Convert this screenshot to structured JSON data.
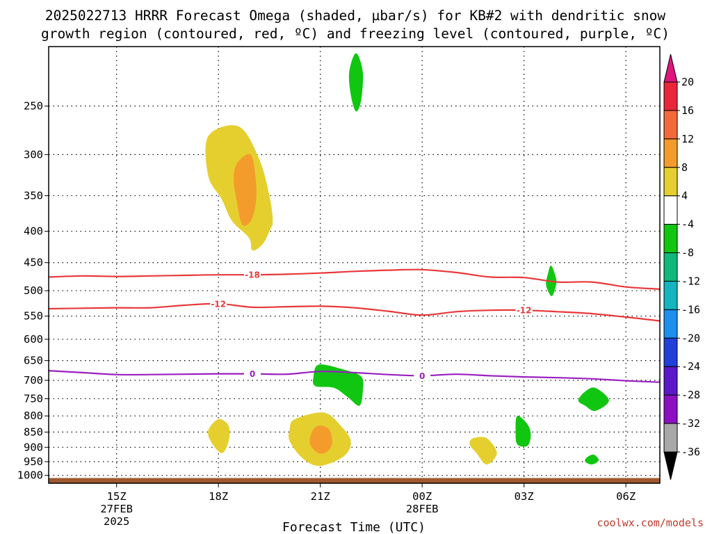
{
  "chart_data": {
    "type": "heatmap",
    "title_line1": "2025022713 HRRR Forecast Omega (shaded, µbar/s) for KB#2 with dendritic snow",
    "title_line2": "growth region (contoured, red, ºC) and freezing level (contoured, purple, ºC)",
    "xlabel": "Forecast Time (UTC)",
    "credit": "coolwx.com/models",
    "x_unit": "hours since 2025022713",
    "xlim": [
      0,
      18
    ],
    "y_log_pressure": true,
    "ylim": [
      200,
      1030
    ],
    "x_ticks": [
      {
        "x": 2,
        "l1": "15Z",
        "l2": "27FEB",
        "l3": "2025"
      },
      {
        "x": 5,
        "l1": "18Z",
        "l2": "",
        "l3": ""
      },
      {
        "x": 8,
        "l1": "21Z",
        "l2": "",
        "l3": ""
      },
      {
        "x": 11,
        "l1": "00Z",
        "l2": "28FEB",
        "l3": ""
      },
      {
        "x": 14,
        "l1": "03Z",
        "l2": "",
        "l3": ""
      },
      {
        "x": 17,
        "l1": "06Z",
        "l2": "",
        "l3": ""
      }
    ],
    "y_ticks": [
      250,
      300,
      350,
      400,
      450,
      500,
      550,
      600,
      650,
      700,
      750,
      800,
      850,
      900,
      950,
      1000
    ],
    "colorbar": {
      "labels": [
        "20",
        "16",
        "12",
        "8",
        "4",
        "-4",
        "-8",
        "-12",
        "-16",
        "-20",
        "-24",
        "-28",
        "-32",
        "-36"
      ],
      "top_arrow_color": "#e0167e",
      "bottom_arrow_color": "#000000",
      "colors": [
        "#e8283a",
        "#f26a3a",
        "#f39c2c",
        "#e5cf2e",
        "#ffffff",
        "#11c611",
        "#10b87a",
        "#14b4c0",
        "#1c8eeb",
        "#2040d8",
        "#5a18c8",
        "#8c10c0",
        "#a8a8a8"
      ]
    },
    "omega_regions": [
      {
        "value": 6,
        "points": [
          [
            4.7,
            280
          ],
          [
            5.6,
            270
          ],
          [
            6.2,
            305
          ],
          [
            6.5,
            350
          ],
          [
            6.6,
            385
          ],
          [
            6.5,
            400
          ],
          [
            6.3,
            420
          ],
          [
            6.0,
            430
          ],
          [
            5.9,
            410
          ],
          [
            5.4,
            385
          ],
          [
            5.1,
            355
          ],
          [
            4.7,
            325
          ]
        ]
      },
      {
        "value": 10,
        "points": [
          [
            5.55,
            310
          ],
          [
            5.95,
            300
          ],
          [
            6.1,
            330
          ],
          [
            6.1,
            360
          ],
          [
            5.95,
            385
          ],
          [
            5.7,
            390
          ],
          [
            5.55,
            360
          ],
          [
            5.45,
            330
          ]
        ]
      },
      {
        "value": -6,
        "points": [
          [
            9.05,
            205
          ],
          [
            9.25,
            220
          ],
          [
            9.2,
            245
          ],
          [
            9.05,
            255
          ],
          [
            8.9,
            240
          ],
          [
            8.85,
            220
          ]
        ]
      },
      {
        "value": -6,
        "points": [
          [
            7.95,
            660
          ],
          [
            8.6,
            670
          ],
          [
            9.2,
            690
          ],
          [
            9.25,
            730
          ],
          [
            9.15,
            770
          ],
          [
            8.8,
            745
          ],
          [
            8.4,
            720
          ],
          [
            7.85,
            715
          ],
          [
            7.8,
            690
          ]
        ]
      },
      {
        "value": 6,
        "points": [
          [
            5.0,
            810
          ],
          [
            5.3,
            830
          ],
          [
            5.3,
            880
          ],
          [
            5.1,
            920
          ],
          [
            4.8,
            885
          ],
          [
            4.7,
            845
          ]
        ]
      },
      {
        "value": 6,
        "points": [
          [
            7.25,
            810
          ],
          [
            8.1,
            790
          ],
          [
            8.6,
            830
          ],
          [
            8.9,
            880
          ],
          [
            8.7,
            930
          ],
          [
            8.0,
            965
          ],
          [
            7.5,
            940
          ],
          [
            7.1,
            880
          ],
          [
            7.1,
            840
          ]
        ]
      },
      {
        "value": 10,
        "points": [
          [
            7.95,
            830
          ],
          [
            8.25,
            840
          ],
          [
            8.35,
            885
          ],
          [
            8.2,
            915
          ],
          [
            7.95,
            920
          ],
          [
            7.7,
            890
          ],
          [
            7.75,
            850
          ]
        ]
      },
      {
        "value": -6,
        "points": [
          [
            13.8,
            800
          ],
          [
            14.1,
            825
          ],
          [
            14.2,
            860
          ],
          [
            14.1,
            895
          ],
          [
            13.8,
            890
          ],
          [
            13.75,
            845
          ]
        ]
      },
      {
        "value": 6,
        "points": [
          [
            12.5,
            870
          ],
          [
            12.9,
            870
          ],
          [
            13.2,
            920
          ],
          [
            12.9,
            960
          ],
          [
            12.6,
            920
          ],
          [
            12.4,
            890
          ]
        ]
      },
      {
        "value": -6,
        "points": [
          [
            14.8,
            455
          ],
          [
            14.95,
            480
          ],
          [
            14.9,
            500
          ],
          [
            14.8,
            510
          ],
          [
            14.65,
            490
          ],
          [
            14.7,
            470
          ]
        ]
      },
      {
        "value": -6,
        "points": [
          [
            15.8,
            730
          ],
          [
            16.1,
            720
          ],
          [
            16.5,
            755
          ],
          [
            16.1,
            785
          ],
          [
            15.8,
            770
          ],
          [
            15.6,
            755
          ]
        ]
      },
      {
        "value": -6,
        "points": [
          [
            15.85,
            935
          ],
          [
            16.05,
            925
          ],
          [
            16.2,
            945
          ],
          [
            16.0,
            960
          ],
          [
            15.8,
            950
          ]
        ]
      }
    ],
    "contours": [
      {
        "label": "-18",
        "color": "#e8383a",
        "label_x": 6.0,
        "points": [
          [
            0,
            475
          ],
          [
            1,
            473
          ],
          [
            2,
            474
          ],
          [
            3,
            473
          ],
          [
            4,
            472
          ],
          [
            5,
            471
          ],
          [
            6,
            471
          ],
          [
            7,
            470
          ],
          [
            8,
            468
          ],
          [
            9,
            465
          ],
          [
            10,
            463
          ],
          [
            11,
            462
          ],
          [
            12,
            467
          ],
          [
            13,
            475
          ],
          [
            14,
            476
          ],
          [
            15,
            484
          ],
          [
            16,
            484
          ],
          [
            17,
            493
          ],
          [
            18,
            497
          ]
        ]
      },
      {
        "label": "-12",
        "color": "#e8383a",
        "label_x": 5.0,
        "label_x2": 14.0,
        "points": [
          [
            0,
            535
          ],
          [
            1,
            534
          ],
          [
            2,
            533
          ],
          [
            3,
            533
          ],
          [
            4,
            528
          ],
          [
            5,
            525
          ],
          [
            6,
            532
          ],
          [
            7,
            531
          ],
          [
            8,
            530
          ],
          [
            9,
            533
          ],
          [
            10,
            540
          ],
          [
            11,
            548
          ],
          [
            12,
            541
          ],
          [
            13,
            538
          ],
          [
            14,
            538
          ],
          [
            15,
            541
          ],
          [
            16,
            545
          ],
          [
            17,
            552
          ],
          [
            18,
            560
          ]
        ]
      },
      {
        "label": "0",
        "color": "#9a1fc0",
        "label_x": 6.0,
        "label_x2": 11.0,
        "points": [
          [
            0,
            675
          ],
          [
            1,
            680
          ],
          [
            2,
            685
          ],
          [
            3,
            685
          ],
          [
            4,
            684
          ],
          [
            5,
            683
          ],
          [
            6,
            683
          ],
          [
            7,
            684
          ],
          [
            8,
            677
          ],
          [
            9,
            680
          ],
          [
            10,
            685
          ],
          [
            11,
            688
          ],
          [
            12,
            684
          ],
          [
            13,
            688
          ],
          [
            14,
            691
          ],
          [
            15,
            693
          ],
          [
            16,
            696
          ],
          [
            17,
            701
          ],
          [
            18,
            705
          ]
        ]
      }
    ],
    "terrain_color": "#9e5a2e"
  }
}
